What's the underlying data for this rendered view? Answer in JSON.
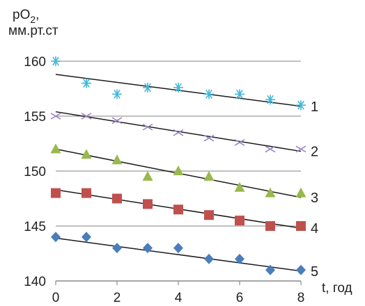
{
  "chart_data": {
    "type": "scatter",
    "ylabel_line1": "pO",
    "ylabel_sub": "2",
    "ylabel_line1_suffix": ",",
    "ylabel_line2": "мм.рт.ст",
    "xlabel": "t, год",
    "xlim": [
      0,
      8
    ],
    "ylim": [
      140,
      160
    ],
    "xticks": [
      0,
      2,
      4,
      6,
      8
    ],
    "yticks": [
      140,
      145,
      150,
      155,
      160
    ],
    "grid": true,
    "legend": "none",
    "series": [
      {
        "label": "1",
        "marker": "asterisk",
        "color": "#3fb8d8",
        "x": [
          0,
          1,
          2,
          3,
          4,
          5,
          6,
          7,
          8
        ],
        "y": [
          160.0,
          158.0,
          157.0,
          157.6,
          157.6,
          157.0,
          157.0,
          156.5,
          156.0
        ],
        "trend": [
          158.8,
          155.9
        ]
      },
      {
        "label": "2",
        "marker": "x",
        "color": "#9b86c4",
        "x": [
          0,
          1,
          2,
          3,
          4,
          5,
          6,
          7,
          8
        ],
        "y": [
          155.0,
          155.0,
          154.6,
          154.0,
          153.5,
          153.0,
          152.6,
          152.0,
          152.0
        ],
        "trend": [
          155.4,
          151.8
        ]
      },
      {
        "label": "3",
        "marker": "triangle",
        "color": "#98b94d",
        "x": [
          0,
          1,
          2,
          3,
          4,
          5,
          6,
          7,
          8
        ],
        "y": [
          152.0,
          151.5,
          151.0,
          149.5,
          150.0,
          149.5,
          148.5,
          148.0,
          148.0
        ],
        "trend": [
          152.0,
          147.6
        ]
      },
      {
        "label": "4",
        "marker": "square",
        "color": "#c0504d",
        "x": [
          0,
          1,
          2,
          3,
          4,
          5,
          6,
          7,
          8
        ],
        "y": [
          148.0,
          148.0,
          147.5,
          147.0,
          146.5,
          146.0,
          145.5,
          145.0,
          145.0
        ],
        "trend": [
          148.3,
          144.8
        ]
      },
      {
        "label": "5",
        "marker": "diamond",
        "color": "#4a7ebb",
        "x": [
          0,
          1,
          2,
          3,
          4,
          5,
          6,
          7,
          8
        ],
        "y": [
          144.0,
          144.0,
          143.0,
          143.0,
          143.0,
          142.0,
          142.0,
          141.0,
          141.0
        ],
        "trend": [
          143.9,
          140.9
        ]
      }
    ]
  }
}
